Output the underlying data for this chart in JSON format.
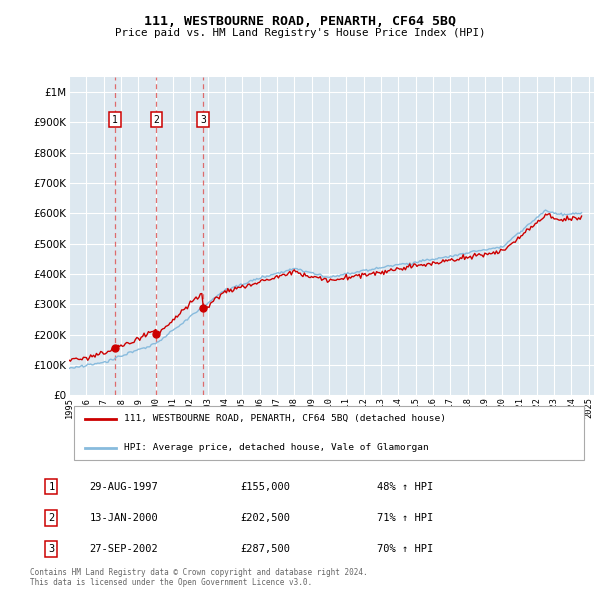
{
  "title": "111, WESTBOURNE ROAD, PENARTH, CF64 5BQ",
  "subtitle": "Price paid vs. HM Land Registry's House Price Index (HPI)",
  "property_label": "111, WESTBOURNE ROAD, PENARTH, CF64 5BQ (detached house)",
  "hpi_label": "HPI: Average price, detached house, Vale of Glamorgan",
  "footer1": "Contains HM Land Registry data © Crown copyright and database right 2024.",
  "footer2": "This data is licensed under the Open Government Licence v3.0.",
  "transactions": [
    {
      "num": 1,
      "date": "29-AUG-1997",
      "price": 155000,
      "pct": "48% ↑ HPI",
      "year": 1997.65
    },
    {
      "num": 2,
      "date": "13-JAN-2000",
      "price": 202500,
      "pct": "71% ↑ HPI",
      "year": 2000.04
    },
    {
      "num": 3,
      "date": "27-SEP-2002",
      "price": 287500,
      "pct": "70% ↑ HPI",
      "year": 2002.74
    }
  ],
  "ylim": [
    0,
    1050000
  ],
  "xlim_start": 1995.3,
  "xlim_end": 2025.3,
  "bg_color": "#dde8f0",
  "grid_color": "#ffffff",
  "property_color": "#cc0000",
  "hpi_color": "#88bbdd",
  "vline_color": "#dd5555",
  "box_edge_color": "#cc0000"
}
